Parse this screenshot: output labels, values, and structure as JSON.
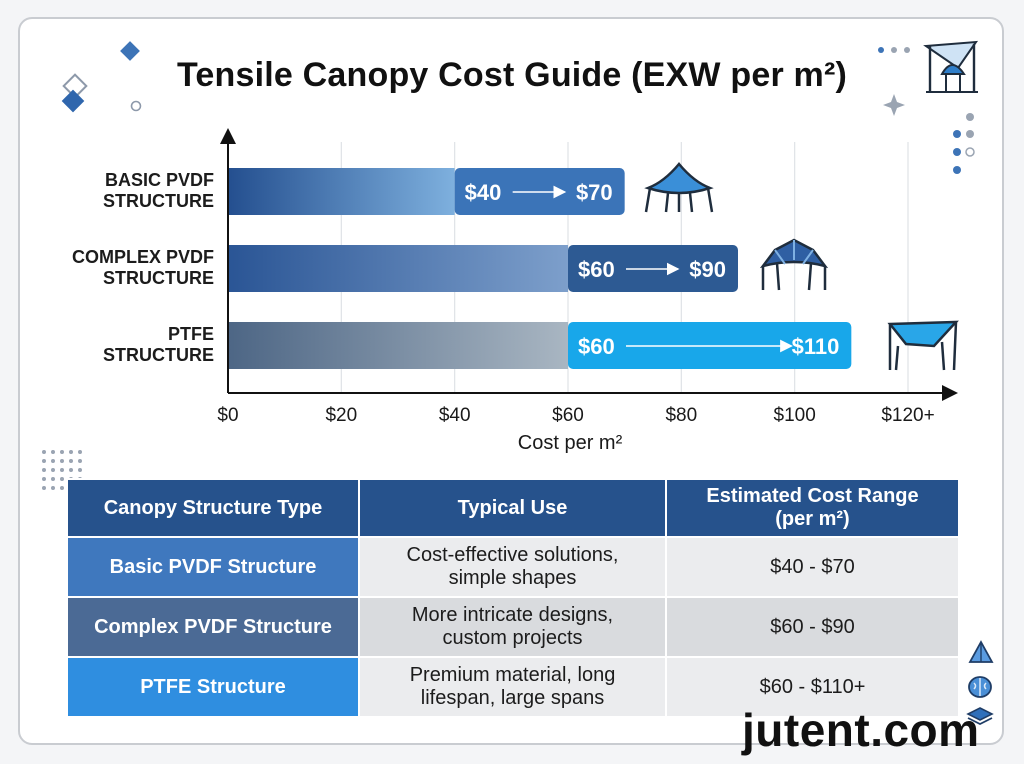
{
  "title": "Tensile Canopy Cost Guide (EXW per m²)",
  "chart_data": {
    "type": "bar",
    "orientation": "horizontal",
    "title": "Tensile Canopy Cost Guide (EXW per m²)",
    "xlabel": "Cost per m²",
    "ylabel": "",
    "xlim": [
      0,
      120
    ],
    "x_ticks": [
      "$0",
      "$20",
      "$40",
      "$60",
      "$80",
      "$100",
      "$120+"
    ],
    "grid": true,
    "categories": [
      "BASIC PVDF\nSTRUCTURE",
      "COMPLEX PVDF\nSTRUCTURE",
      "PTFE\nSTRUCTURE"
    ],
    "series": [
      {
        "low": 40,
        "high": 70,
        "range_from": "$40",
        "range_to": "$70"
      },
      {
        "low": 60,
        "high": 90,
        "range_from": "$60",
        "range_to": "$90"
      },
      {
        "low": 60,
        "high": 110,
        "range_from": "$60",
        "range_to": "$110"
      }
    ],
    "colors": {
      "bar_gradients": [
        [
          "#244f8f",
          "#7eb0de"
        ],
        [
          "#2a5595",
          "#7d9fcb"
        ],
        [
          "#4d6685",
          "#a9b6c2"
        ]
      ],
      "badges": [
        "#3b74b8",
        "#2d5a93",
        "#18a7ea"
      ]
    }
  },
  "table": {
    "headers": [
      "Canopy Structure Type",
      "Typical Use",
      "Estimated Cost Range\n(per m²)"
    ],
    "rows": [
      [
        "Basic PVDF Structure",
        "Cost-effective solutions,\nsimple shapes",
        "$40 - $70"
      ],
      [
        "Complex PVDF Structure",
        "More intricate designs,\ncustom projects",
        "$60 - $90"
      ],
      [
        "PTFE Structure",
        "Premium material, long\nlifespan, large spans",
        "$60 - $110+"
      ]
    ]
  },
  "brand": "jutent.com",
  "icons": [
    "canopy-tent-icon",
    "pavilion-icon",
    "shade-sail-icon",
    "structure-logo-icon",
    "triangle-icon",
    "brain-icon",
    "layers-icon"
  ]
}
